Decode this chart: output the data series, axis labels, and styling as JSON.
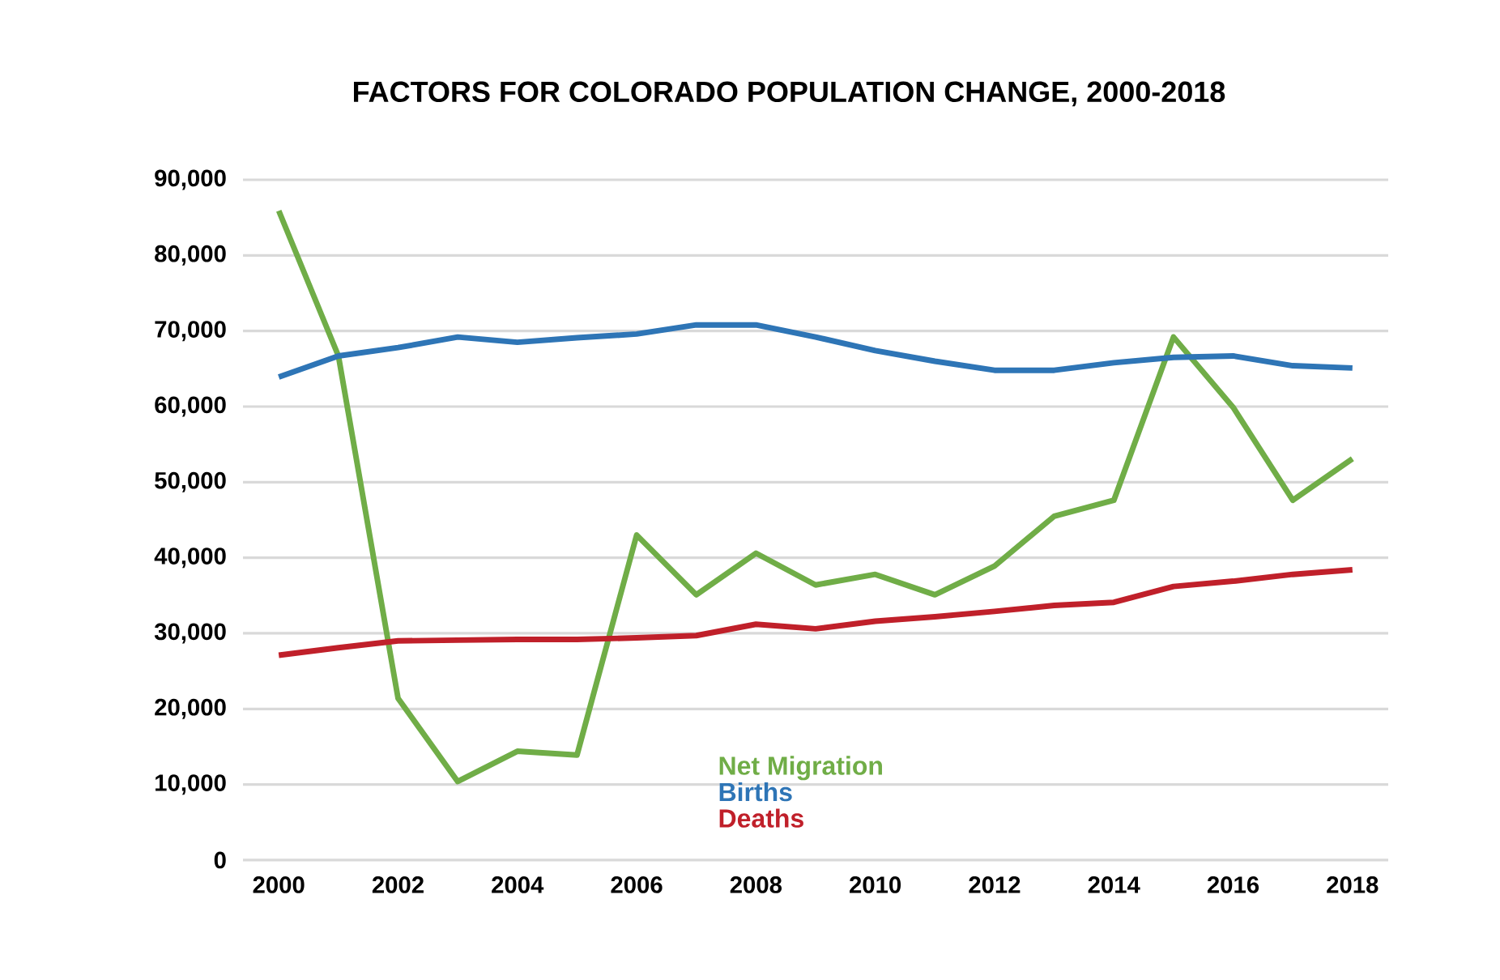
{
  "chart_data": {
    "type": "line",
    "title": "FACTORS FOR COLORADO POPULATION CHANGE, 2000-2018",
    "x": [
      2000,
      2001,
      2002,
      2003,
      2004,
      2005,
      2006,
      2007,
      2008,
      2009,
      2010,
      2011,
      2012,
      2013,
      2014,
      2015,
      2016,
      2017,
      2018
    ],
    "series": [
      {
        "name": "Net Migration",
        "color": "#70ad47",
        "values": [
          85900,
          66700,
          21400,
          10400,
          14400,
          13900,
          43000,
          35100,
          40600,
          36400,
          37800,
          35100,
          38900,
          45500,
          47600,
          69200,
          59900,
          47600,
          53100
        ]
      },
      {
        "name": "Births",
        "color": "#2e75b6",
        "values": [
          63900,
          66700,
          67800,
          69200,
          68500,
          69100,
          69600,
          70800,
          70800,
          69200,
          67400,
          66000,
          64800,
          64800,
          65800,
          66500,
          66700,
          65400,
          65100
        ]
      },
      {
        "name": "Deaths",
        "color": "#c0202a",
        "values": [
          27100,
          28100,
          29000,
          29100,
          29200,
          29200,
          29400,
          29700,
          31200,
          30600,
          31600,
          32200,
          32900,
          33700,
          34100,
          36200,
          36900,
          37800,
          38400
        ]
      }
    ],
    "xlim": [
      1999.4,
      2018.6
    ],
    "ylim": [
      0,
      90000
    ],
    "xticks": [
      2000,
      2002,
      2004,
      2006,
      2008,
      2010,
      2012,
      2014,
      2016,
      2018
    ],
    "yticks": [
      {
        "value": 0,
        "label": "0"
      },
      {
        "value": 10000,
        "label": "10,000"
      },
      {
        "value": 20000,
        "label": "20,000"
      },
      {
        "value": 30000,
        "label": "30,000"
      },
      {
        "value": 40000,
        "label": "40,000"
      },
      {
        "value": 50000,
        "label": "50,000"
      },
      {
        "value": 60000,
        "label": "60,000"
      },
      {
        "value": 70000,
        "label": "70,000"
      },
      {
        "value": 80000,
        "label": "80,000"
      },
      {
        "value": 90000,
        "label": "90,000"
      }
    ],
    "grid": "y",
    "legend": "bottom",
    "marker": "none",
    "line_style": "solid"
  }
}
